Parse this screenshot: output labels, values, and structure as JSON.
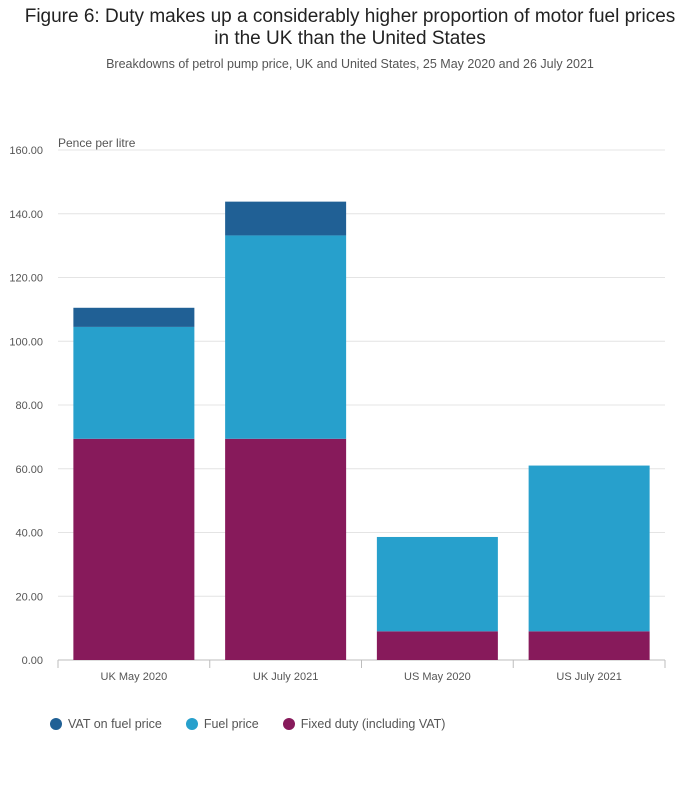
{
  "title": "Figure 6: Duty makes up a considerably higher proportion of motor fuel prices in the UK than the United States",
  "subtitle": "Breakdowns of petrol pump price, UK and United States, 25 May 2020 and 26 July 2021",
  "chart_data": {
    "type": "bar",
    "stacked": true,
    "categories": [
      "UK May 2020",
      "UK July 2021",
      "US May 2020",
      "US July 2021"
    ],
    "series": [
      {
        "name": "Fixed duty (including VAT)",
        "color": "#871a5b",
        "values": [
          69.4,
          69.4,
          9.0,
          9.0
        ]
      },
      {
        "name": "Fuel price",
        "color": "#27a0cc",
        "values": [
          35.1,
          63.8,
          29.6,
          52.0
        ]
      },
      {
        "name": "VAT on fuel price",
        "color": "#206095",
        "values": [
          6.0,
          10.6,
          0,
          0
        ]
      }
    ],
    "ylabel": "Pence per litre",
    "ylim": [
      0,
      160
    ],
    "yticks": [
      "0.00",
      "20.00",
      "40.00",
      "60.00",
      "80.00",
      "100.00",
      "120.00",
      "140.00",
      "160.00"
    ],
    "legend_order": [
      "VAT on fuel price",
      "Fuel price",
      "Fixed duty (including VAT)"
    ],
    "grid": true,
    "legend_position": "bottom-left"
  }
}
